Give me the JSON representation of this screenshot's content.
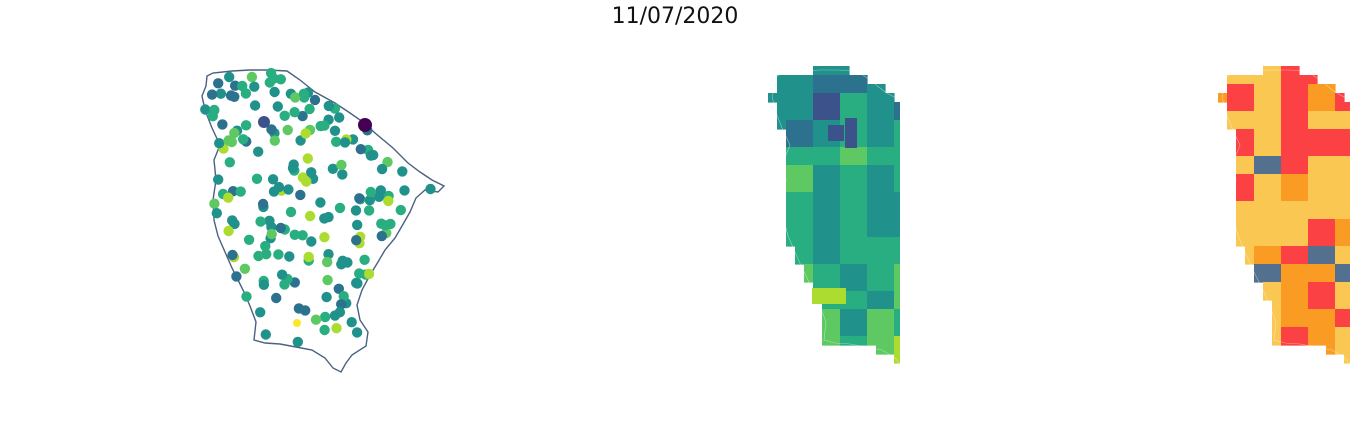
{
  "figure": {
    "title": "11/07/2020"
  },
  "panels": [
    {
      "name": "points-panel",
      "style": "outline-with-points",
      "outline_color": "#4a6182"
    },
    {
      "name": "choropleth-viridis-panel",
      "style": "choropleth",
      "colormap": "viridis"
    },
    {
      "name": "choropleth-categorical-panel",
      "style": "choropleth-categorical",
      "category_colors": [
        "#f9c752",
        "#fb4143",
        "#fa9b23",
        "#53718f"
      ]
    }
  ],
  "colormap_viridis": [
    "#440154",
    "#3b528b",
    "#2c728e",
    "#21918c",
    "#28ae80",
    "#5ec962",
    "#addc30",
    "#fde725"
  ]
}
